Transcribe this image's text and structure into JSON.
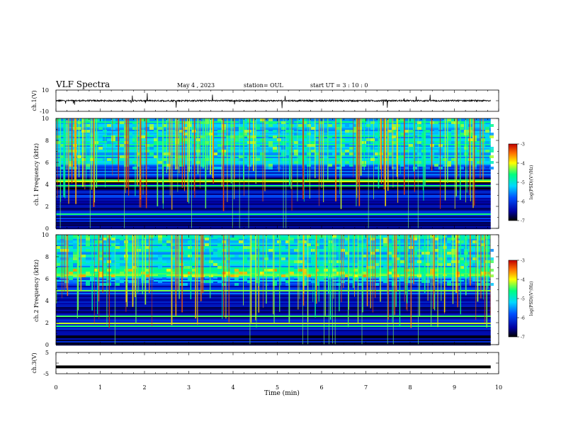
{
  "header": {
    "title": "VLF Spectra",
    "date": "May 4 , 2023",
    "station": "station= OUL",
    "start": "start  UT =   3 : 10 : 0"
  },
  "colors": {
    "spectrogram_map": [
      "#000000",
      "#0000a0",
      "#0050ff",
      "#00d8ff",
      "#00ff80",
      "#ffff00",
      "#ff7000",
      "#c00000"
    ],
    "waveform": "#000000"
  },
  "chart_data": [
    {
      "type": "line",
      "panel": "ch1-waveform",
      "ylabel": "ch.1(V)",
      "ylim": [
        -10,
        10
      ],
      "yticks": [
        "10",
        "-10"
      ],
      "series": [
        {
          "values_description_note": "",
          "baseline": 0,
          "amplitude": 1.5
        }
      ]
    },
    {
      "type": "heatmap",
      "panel": "ch1-spectrogram",
      "ylabel": "ch.1 Frequency (kHz)",
      "xlim": [
        0,
        10
      ],
      "ylim": [
        0,
        10
      ],
      "yticks": [
        "0",
        "2",
        "4",
        "6",
        "8",
        "10"
      ],
      "data_end_min": 9.82,
      "colorbar": {
        "label": "log(PSD)(V²/Hz)",
        "range": [
          -7,
          -3
        ],
        "ticks": [
          "-3",
          "-4",
          "-5",
          "-6",
          "-7"
        ]
      },
      "bands": [
        {
          "f0": 0,
          "f1": 3.5,
          "level": -6.3
        },
        {
          "f0": 3.5,
          "f1": 4.6,
          "level": -6.8
        },
        {
          "f0": 4.6,
          "f1": 5.8,
          "level": -5.9
        },
        {
          "f0": 5.8,
          "f1": 10,
          "level": -5.2
        }
      ]
    },
    {
      "type": "heatmap",
      "panel": "ch2-spectrogram",
      "ylabel": "ch.2 Frequency (kHz)",
      "xlim": [
        0,
        10
      ],
      "ylim": [
        0,
        10
      ],
      "yticks": [
        "0",
        "2",
        "4",
        "6",
        "8",
        "10"
      ],
      "data_end_min": 9.82,
      "colorbar": {
        "label": "log(PSD)(V²/Hz)",
        "range": [
          -7,
          -3
        ],
        "ticks": [
          "-3",
          "-4",
          "-5",
          "-6",
          "-7"
        ]
      },
      "bands": [
        {
          "f0": 0,
          "f1": 3.5,
          "level": -6.5
        },
        {
          "f0": 3.5,
          "f1": 5.5,
          "level": -6.1
        },
        {
          "f0": 5.5,
          "f1": 6.2,
          "level": -5.6
        },
        {
          "f0": 6.2,
          "f1": 7.0,
          "level": -4.6
        },
        {
          "f0": 7.0,
          "f1": 10,
          "level": -5.2
        }
      ]
    },
    {
      "type": "line",
      "panel": "ch3-waveform",
      "ylabel": "ch.3(V)",
      "ylim": [
        -5,
        5
      ],
      "yticks": [
        "5",
        "-5"
      ],
      "series": [
        {
          "baseline": -1.8,
          "amplitude": 0
        }
      ]
    }
  ],
  "xaxis": {
    "label": "Time  (min)",
    "ticks": [
      "0",
      "1",
      "2",
      "3",
      "4",
      "5",
      "6",
      "7",
      "8",
      "9",
      "10"
    ],
    "xlim": [
      0,
      10
    ]
  }
}
